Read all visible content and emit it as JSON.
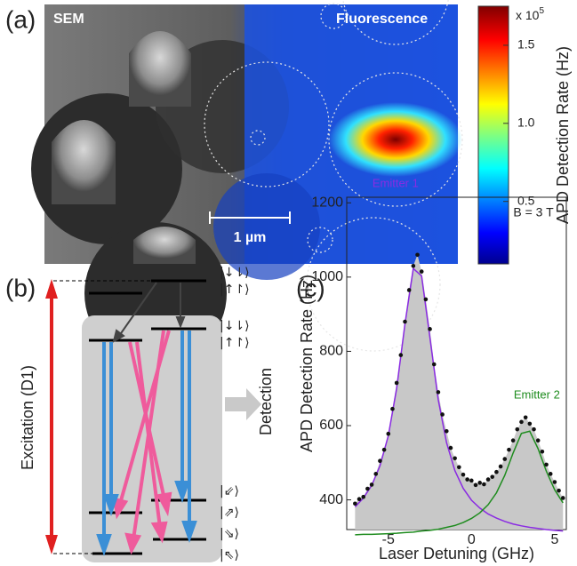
{
  "panel_labels": [
    "(a)",
    "(b)",
    "(c)"
  ],
  "panel_a": {
    "left_label": "SEM",
    "right_label": "Fluorescence",
    "scale_bar": "1 µm",
    "colorbar": {
      "label": "APD Detection Rate (Hz)",
      "multiplier": "x 10",
      "multiplier_exp": "5",
      "clim": [
        0.1,
        1.75
      ],
      "ticks": [
        0.5,
        {
          "value": 1,
          "label": "1.0"
        },
        1.5
      ]
    }
  },
  "panel_b": {
    "excitation_label": "Excitation (D1)",
    "detection_label": "Detection",
    "kets": [
      "|↓⇂⟩",
      "|↑↾⟩",
      "|↓⇂⟩",
      "|↑↾⟩",
      "|⇙⟩",
      "|⇗⟩",
      "|⇘⟩",
      "|⇖⟩"
    ]
  },
  "chart_data": {
    "type": "scatter",
    "xlabel": "Laser Detuning (GHz)",
    "ylabel": "APD Detection Rate (Hz)",
    "annotation": "B = 3 T",
    "color": "#111111",
    "fill_color": "#c8c8c8",
    "xlim": [
      -7.5,
      5.7
    ],
    "ylim": [
      320,
      1215
    ],
    "xticks": [
      -5,
      0,
      5
    ],
    "yticks": [
      400,
      600,
      800,
      1000,
      1200
    ],
    "x": [
      -7,
      -6.75,
      -6.5,
      -6.25,
      -6,
      -5.75,
      -5.5,
      -5.25,
      -5,
      -4.75,
      -4.5,
      -4.25,
      -4,
      -3.75,
      -3.5,
      -3.25,
      -3,
      -2.75,
      -2.5,
      -2.25,
      -2,
      -1.75,
      -1.5,
      -1.25,
      -1,
      -0.75,
      -0.5,
      -0.25,
      0,
      0.25,
      0.5,
      0.75,
      1,
      1.25,
      1.5,
      1.75,
      2,
      2.25,
      2.5,
      2.75,
      3,
      3.25,
      3.5,
      3.75,
      4,
      4.25,
      4.5,
      4.75,
      5,
      5.25,
      5.5
    ],
    "values": [
      390,
      402,
      408,
      430,
      441,
      470,
      505,
      535,
      578,
      645,
      715,
      790,
      880,
      965,
      1030,
      1060,
      1015,
      940,
      860,
      765,
      690,
      630,
      585,
      540,
      512,
      488,
      468,
      455,
      452,
      440,
      446,
      442,
      455,
      462,
      475,
      490,
      510,
      535,
      560,
      590,
      610,
      622,
      605,
      590,
      560,
      530,
      495,
      470,
      448,
      425,
      405
    ],
    "fit": {
      "x": [
        -7,
        -6.5,
        -6,
        -5.5,
        -5,
        -4.5,
        -4,
        -3.5,
        -3,
        -2.5,
        -2,
        -1.5,
        -1,
        -0.5,
        0,
        0.5,
        1,
        1.5,
        2,
        2.5,
        3,
        3.5,
        4,
        4.5,
        5,
        5.5
      ],
      "series": [
        {
          "name": "Emitter 1",
          "color": "#8a2be2",
          "values": [
            381,
            405,
            439,
            492,
            573,
            700,
            874,
            1023,
            1003,
            837,
            670,
            554,
            479,
            431,
            399,
            378,
            362,
            351,
            342,
            335,
            330,
            326,
            323,
            320,
            318,
            316
          ]
        },
        {
          "name": "Emitter 2",
          "color": "#1e8c1e",
          "values": [
            306,
            307,
            307,
            308,
            309,
            310,
            312,
            313,
            316,
            318,
            321,
            326,
            331,
            339,
            350,
            365,
            387,
            419,
            466,
            526,
            579,
            585,
            538,
            477,
            427,
            392
          ]
        }
      ]
    }
  }
}
